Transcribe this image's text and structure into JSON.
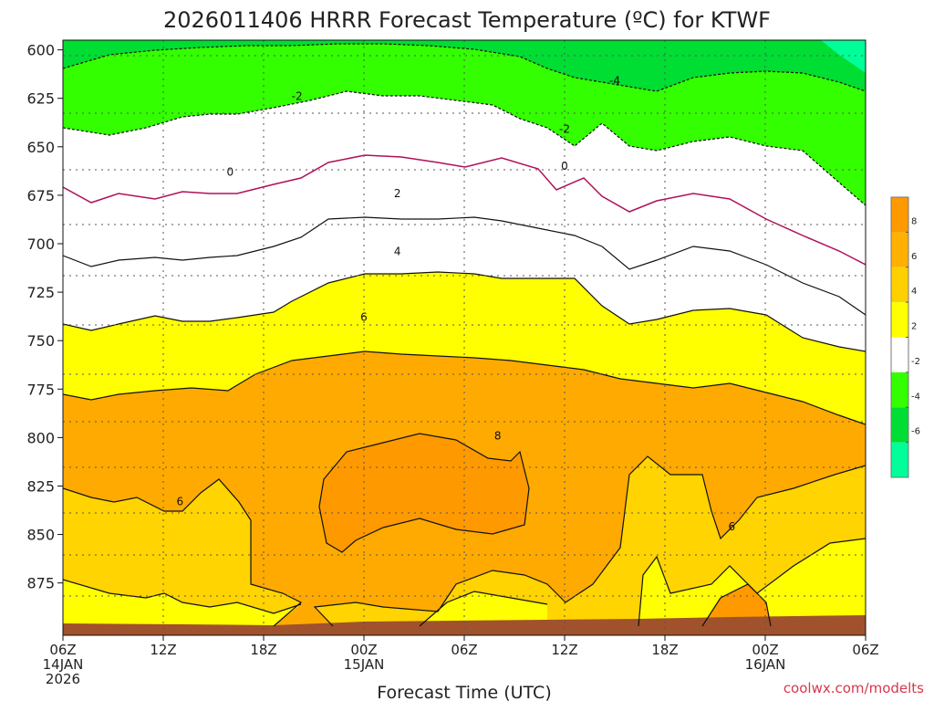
{
  "chart_data": {
    "type": "heatmap",
    "title": "2026011406 HRRR Forecast Temperature (ºC) for KTWF",
    "xlabel": "Forecast Time (UTC)",
    "ylabel": "",
    "credit": "coolwx.com/modelts",
    "y_axis": {
      "ticks": [
        "600",
        "625",
        "650",
        "675",
        "700",
        "725",
        "750",
        "775",
        "800",
        "825",
        "850",
        "875"
      ],
      "ylim": [
        595,
        902
      ],
      "inverted": true
    },
    "x_axis": {
      "ticks": [
        {
          "line1": "06Z",
          "line2": "14JAN",
          "line3": "2026"
        },
        {
          "line1": "12Z",
          "line2": "",
          "line3": ""
        },
        {
          "line1": "18Z",
          "line2": "",
          "line3": ""
        },
        {
          "line1": "00Z",
          "line2": "15JAN",
          "line3": ""
        },
        {
          "line1": "06Z",
          "line2": "",
          "line3": ""
        },
        {
          "line1": "12Z",
          "line2": "",
          "line3": ""
        },
        {
          "line1": "18Z",
          "line2": "",
          "line3": ""
        },
        {
          "line1": "00Z",
          "line2": "16JAN",
          "line3": ""
        },
        {
          "line1": "06Z",
          "line2": "",
          "line3": ""
        }
      ],
      "xlim_hours": [
        0,
        48
      ]
    },
    "colorbar": {
      "levels": [
        "8",
        "6",
        "4",
        "2",
        "-2",
        "-4",
        "-6"
      ],
      "colors": [
        "#ff9900",
        "#ffb000",
        "#ffd000",
        "#ffff00",
        "#ffffff",
        "#33ff00",
        "#00dd33",
        "#00ff99"
      ]
    },
    "contour_labels": [
      {
        "text": "-4",
        "hour": 33.0,
        "pressure": 616
      },
      {
        "text": "-2",
        "hour": 14.0,
        "pressure": 624
      },
      {
        "text": "-2",
        "hour": 30.0,
        "pressure": 641
      },
      {
        "text": "0",
        "hour": 10.0,
        "pressure": 663
      },
      {
        "text": "0",
        "hour": 30.0,
        "pressure": 660
      },
      {
        "text": "2",
        "hour": 20.0,
        "pressure": 674
      },
      {
        "text": "4",
        "hour": 20.0,
        "pressure": 704
      },
      {
        "text": "6",
        "hour": 18.0,
        "pressure": 738
      },
      {
        "text": "8",
        "hour": 26.0,
        "pressure": 799
      },
      {
        "text": "6",
        "hour": 7.0,
        "pressure": 833
      },
      {
        "text": "6",
        "hour": 40.0,
        "pressure": 846
      }
    ]
  }
}
